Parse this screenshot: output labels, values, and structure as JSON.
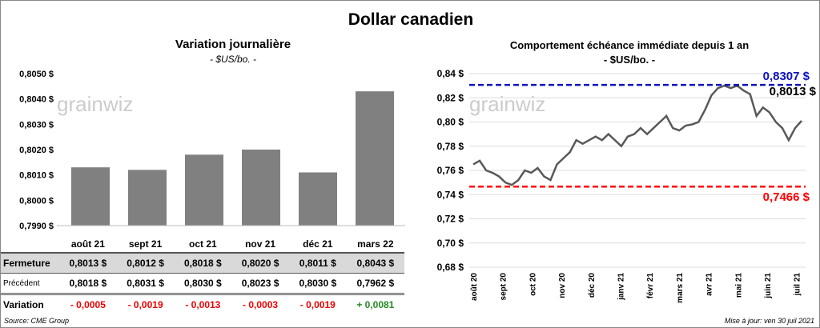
{
  "title": "Dollar canadien",
  "left": {
    "title": "Variation  journalière",
    "subtitle": "- $US/bo. -",
    "watermark": "grainwiz"
  },
  "right": {
    "title": "Comportement échéance immédiate depuis 1 an",
    "subtitle": "- $US/bo. -",
    "watermark": "grainwiz",
    "max_label": "0,8307 $",
    "min_label": "0,7466 $",
    "last_label": "0,8013 $"
  },
  "table": {
    "row_labels": {
      "close": "Fermeture",
      "previous": "Précédent",
      "variation": "Variation"
    },
    "columns": [
      {
        "month": "août 21",
        "close": "0,8013  $",
        "previous": "0,8018  $",
        "variation": "- 0,0005",
        "up": false
      },
      {
        "month": "sept 21",
        "close": "0,8012  $",
        "previous": "0,8031  $",
        "variation": "- 0,0019",
        "up": false
      },
      {
        "month": "oct 21",
        "close": "0,8018  $",
        "previous": "0,8030  $",
        "variation": "- 0,0013",
        "up": false
      },
      {
        "month": "nov 21",
        "close": "0,8020  $",
        "previous": "0,8023  $",
        "variation": "- 0,0003",
        "up": false
      },
      {
        "month": "déc 21",
        "close": "0,8011  $",
        "previous": "0,8030  $",
        "variation": "- 0,0019",
        "up": false
      },
      {
        "month": "mars 22",
        "close": "0,8043  $",
        "previous": "0,7962  $",
        "variation": "+ 0,0081",
        "up": true
      }
    ]
  },
  "footer": {
    "source": "Source: CME Group",
    "updated": "Mise à jour: ven 30 juil 2021"
  },
  "chart_data": [
    {
      "type": "bar",
      "title": "Variation  journalière",
      "ylabel": "$US/bo.",
      "categories": [
        "août 21",
        "sept 21",
        "oct 21",
        "nov 21",
        "déc 21",
        "mars 22"
      ],
      "values": [
        0.8013,
        0.8012,
        0.8018,
        0.802,
        0.8011,
        0.8043
      ],
      "ylim": [
        0.799,
        0.805
      ],
      "yticks": [
        "0,7990 $",
        "0,8000 $",
        "0,8010 $",
        "0,8020 $",
        "0,8030 $",
        "0,8040 $",
        "0,8050 $"
      ],
      "color": "#808080"
    },
    {
      "type": "line",
      "title": "Comportement échéance immédiate depuis 1 an",
      "ylim": [
        0.68,
        0.84
      ],
      "yticks": [
        "0,68 $",
        "0,70 $",
        "0,72 $",
        "0,74 $",
        "0,76 $",
        "0,78 $",
        "0,80 $",
        "0,82 $",
        "0,84 $"
      ],
      "xticks": [
        "août 20",
        "sept 20",
        "oct 20",
        "nov 20",
        "déc 20",
        "janv 21",
        "févr 21",
        "mars 21",
        "avr 21",
        "mai 21",
        "juin 21",
        "juil 21"
      ],
      "values": [
        0.765,
        0.768,
        0.76,
        0.758,
        0.755,
        0.75,
        0.748,
        0.752,
        0.76,
        0.758,
        0.762,
        0.755,
        0.752,
        0.765,
        0.77,
        0.775,
        0.785,
        0.782,
        0.785,
        0.788,
        0.785,
        0.79,
        0.785,
        0.78,
        0.788,
        0.79,
        0.795,
        0.79,
        0.795,
        0.8,
        0.805,
        0.795,
        0.793,
        0.797,
        0.798,
        0.8,
        0.81,
        0.822,
        0.828,
        0.83,
        0.828,
        0.83,
        0.826,
        0.823,
        0.805,
        0.812,
        0.808,
        0.8,
        0.795,
        0.785,
        0.795,
        0.801
      ],
      "max": 0.8307,
      "min": 0.7466,
      "last": 0.8013,
      "line_color": "#595959",
      "max_color": "#1010c0",
      "min_color": "#ff0000"
    }
  ]
}
